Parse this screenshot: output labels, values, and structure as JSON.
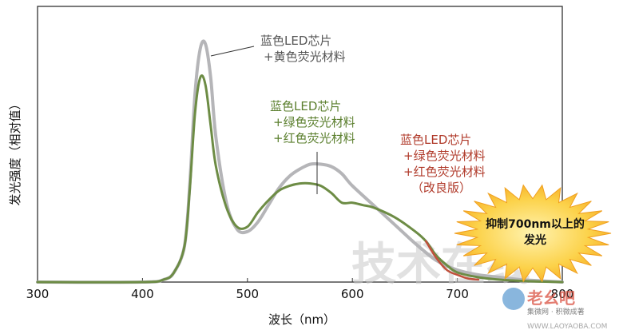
{
  "chart_data": {
    "type": "line",
    "xlabel": "波长（nm）",
    "ylabel": "发光强度（相对值）",
    "xlim": [
      300,
      800
    ],
    "ylim": [
      0,
      1.0
    ],
    "x_ticks": [
      300,
      400,
      500,
      600,
      700,
      800
    ],
    "grid": false,
    "series": [
      {
        "name": "蓝色LED芯片 +黄色荧光材料",
        "color": "#b5b5b8",
        "x": [
          300,
          400,
          420,
          430,
          440,
          445,
          450,
          455,
          460,
          465,
          470,
          480,
          490,
          500,
          510,
          520,
          530,
          540,
          550,
          560,
          570,
          580,
          590,
          600,
          620,
          640,
          660,
          680,
          700,
          720,
          740,
          760,
          780,
          800
        ],
        "y": [
          0.0,
          0.0,
          0.01,
          0.04,
          0.15,
          0.4,
          0.78,
          0.97,
          0.99,
          0.85,
          0.6,
          0.33,
          0.22,
          0.21,
          0.25,
          0.32,
          0.39,
          0.44,
          0.47,
          0.49,
          0.49,
          0.48,
          0.45,
          0.4,
          0.32,
          0.24,
          0.16,
          0.09,
          0.05,
          0.03,
          0.02,
          0.01,
          0.005,
          0.0
        ]
      },
      {
        "name": "蓝色LED芯片 +绿色荧光材料 +红色荧光材料",
        "color": "#6d8c45",
        "x": [
          300,
          400,
          420,
          430,
          440,
          445,
          450,
          455,
          460,
          465,
          470,
          480,
          490,
          500,
          510,
          520,
          530,
          540,
          550,
          560,
          570,
          580,
          590,
          600,
          610,
          620,
          640,
          660,
          670,
          680,
          690,
          700,
          720,
          740,
          760,
          780,
          800
        ],
        "y": [
          0.0,
          0.0,
          0.01,
          0.04,
          0.15,
          0.38,
          0.7,
          0.85,
          0.82,
          0.65,
          0.48,
          0.31,
          0.23,
          0.23,
          0.29,
          0.34,
          0.38,
          0.4,
          0.41,
          0.41,
          0.4,
          0.37,
          0.33,
          0.33,
          0.32,
          0.31,
          0.27,
          0.21,
          0.17,
          0.11,
          0.07,
          0.04,
          0.02,
          0.01,
          0.005,
          0.002,
          0.0
        ]
      },
      {
        "name": "蓝色LED芯片 +绿色荧光材料 +红色荧光材料 （改良版）",
        "color": "#c0503c",
        "x": [
          670,
          680,
          690,
          700,
          710,
          720
        ],
        "y": [
          0.17,
          0.1,
          0.05,
          0.03,
          0.015,
          0.01
        ]
      }
    ],
    "annotations": [
      {
        "lines": [
          "蓝色LED芯片",
          "+黄色荧光材料"
        ],
        "color": "#555555"
      },
      {
        "lines": [
          "蓝色LED芯片",
          "+绿色荧光材料",
          "+红色荧光材料"
        ],
        "color": "#5b7f2e"
      },
      {
        "lines": [
          "蓝色LED芯片",
          "+绿色荧光材料",
          "+红色荧光材料",
          "（改良版）"
        ],
        "color": "#b03a2a"
      }
    ],
    "callout": {
      "lines": [
        "抑制700nm以上的",
        "发光"
      ],
      "color": "#f7a823"
    }
  },
  "watermarks": {
    "main": "技术在线",
    "site_logo": "老幺吧",
    "site_sub": "集微网 · 积微成著",
    "site_url": "WWW.LAOYAOBA.COM"
  }
}
